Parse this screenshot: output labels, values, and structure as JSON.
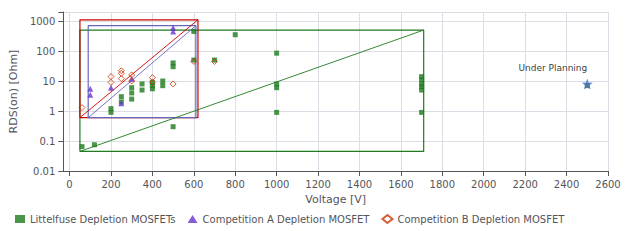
{
  "chart_data": {
    "type": "scatter",
    "xlabel": "Voltage [V]",
    "ylabel": "RDS(on) [Ohm]",
    "log": "y",
    "grid": true,
    "legend": "bottom",
    "xlim": [
      -30,
      2600
    ],
    "ylim": [
      0.01,
      2000
    ],
    "xticks": [
      0,
      200,
      400,
      600,
      800,
      1000,
      1200,
      1400,
      1600,
      1800,
      2000,
      2200,
      2400,
      2600
    ],
    "yticks": [
      0.01,
      0.1,
      1,
      10,
      100,
      1000
    ],
    "series": [
      {
        "type": "polygon",
        "color": "#1e7b1e",
        "x": [
          50,
          1710,
          1710,
          50
        ],
        "values": [
          0.045,
          0.045,
          500,
          500
        ]
      },
      {
        "type": "polygon",
        "color": "#cc0000",
        "x": [
          50,
          620,
          620,
          50
        ],
        "values": [
          0.6,
          0.6,
          1100,
          1100
        ]
      },
      {
        "type": "polygon",
        "color": "#6666bb",
        "x": [
          90,
          610,
          610,
          90
        ],
        "values": [
          0.6,
          0.6,
          700,
          700
        ]
      },
      {
        "type": "line",
        "color": "#cc0000",
        "x": [
          50,
          620
        ],
        "values": [
          0.6,
          1100
        ]
      },
      {
        "type": "line",
        "color": "#1e7b1e",
        "x": [
          50,
          1710
        ],
        "values": [
          0.045,
          500
        ]
      },
      {
        "type": "line",
        "color": "#6666bb",
        "x": [
          90,
          610
        ],
        "values": [
          0.6,
          700
        ]
      },
      {
        "type": "scatter",
        "name": "Littelfuse Depletion MOSFETs",
        "color": "#1e7b1e",
        "marker": "square",
        "x": [
          60,
          120,
          200,
          200,
          250,
          250,
          300,
          300,
          300,
          350,
          350,
          400,
          400,
          400,
          450,
          450,
          500,
          500,
          500,
          600,
          600,
          700,
          800,
          1000,
          1000,
          1000,
          1000,
          1700,
          1700,
          1700,
          1700,
          1700,
          1700,
          2500
        ],
        "values": [
          0.065,
          0.075,
          0.9,
          1.2,
          2.0,
          3.0,
          2.5,
          4.0,
          6.0,
          5.0,
          8.0,
          5.5,
          7.0,
          9.0,
          7.0,
          10.0,
          0.3,
          30.0,
          40.0,
          50.0,
          450.0,
          50.0,
          350.0,
          0.9,
          6.0,
          8.0,
          85.0,
          0.9,
          5.0,
          6.5,
          8.0,
          11.0,
          14.0,
          7.0
        ]
      },
      {
        "type": "scatter",
        "name": "Competition A Depletion MOSFET",
        "color": "#6633cc",
        "marker": "triangle",
        "x": [
          100,
          100,
          200,
          250,
          300,
          500,
          500
        ],
        "values": [
          3.5,
          5.5,
          6.0,
          1.8,
          12.0,
          450.0,
          600.0
        ]
      },
      {
        "type": "scatter",
        "name": "Competition B Depletion MOSFET",
        "color": "#cc3300",
        "marker": "diamond-open",
        "x": [
          60,
          200,
          200,
          250,
          250,
          250,
          300,
          300,
          400,
          400,
          500,
          600,
          700
        ],
        "values": [
          1.3,
          9.0,
          14.0,
          12.0,
          18.0,
          22.0,
          10.0,
          16.0,
          9.0,
          13.0,
          8.0,
          45.0,
          45.0
        ]
      },
      {
        "type": "scatter",
        "color": "#4472c4",
        "marker": "star",
        "annotation": "Under Planning",
        "x": [
          2500
        ],
        "values": [
          8.0
        ]
      }
    ]
  }
}
